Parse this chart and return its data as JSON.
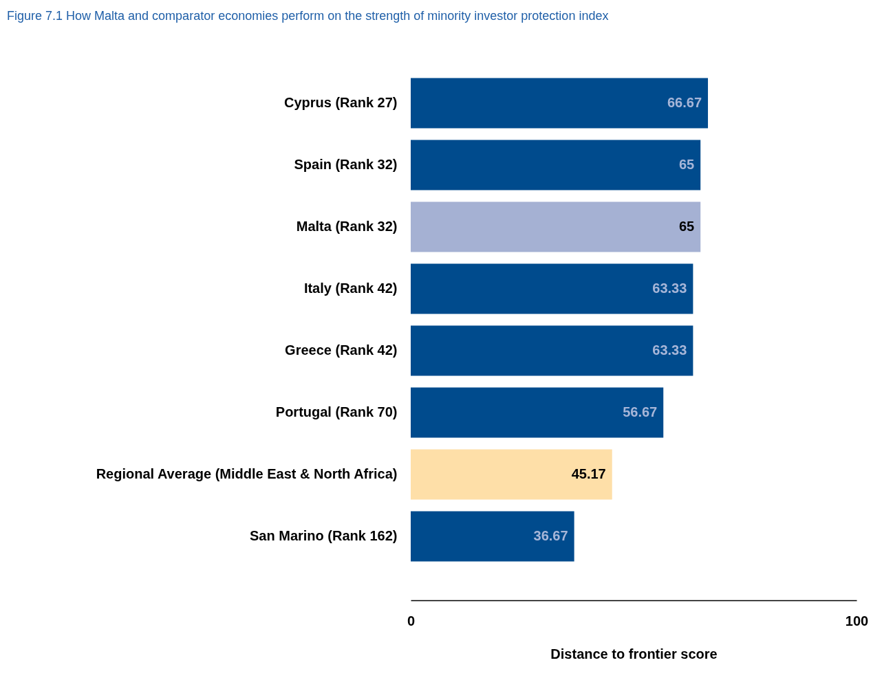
{
  "chart_data": {
    "type": "bar",
    "orientation": "horizontal",
    "title": "Figure 7.1 How Malta and comparator economies perform on the strength of minority investor protection index",
    "xlabel": "Distance to frontier score",
    "categories": [
      "Cyprus (Rank 27)",
      "Spain (Rank 32)",
      "Malta (Rank 32)",
      "Italy (Rank 42)",
      "Greece (Rank 42)",
      "Portugal (Rank 70)",
      "Regional Average (Middle East & North Africa)",
      "San Marino (Rank 162)"
    ],
    "values": [
      66.67,
      65,
      65,
      63.33,
      63.33,
      56.67,
      45.17,
      36.67
    ],
    "colors": [
      "#004b8d",
      "#004b8d",
      "#a5b1d3",
      "#004b8d",
      "#004b8d",
      "#004b8d",
      "#fedfa8",
      "#004b8d"
    ],
    "xlim": [
      0,
      100
    ],
    "xticks": [
      0,
      100
    ],
    "data_labels": true,
    "grid": false
  }
}
